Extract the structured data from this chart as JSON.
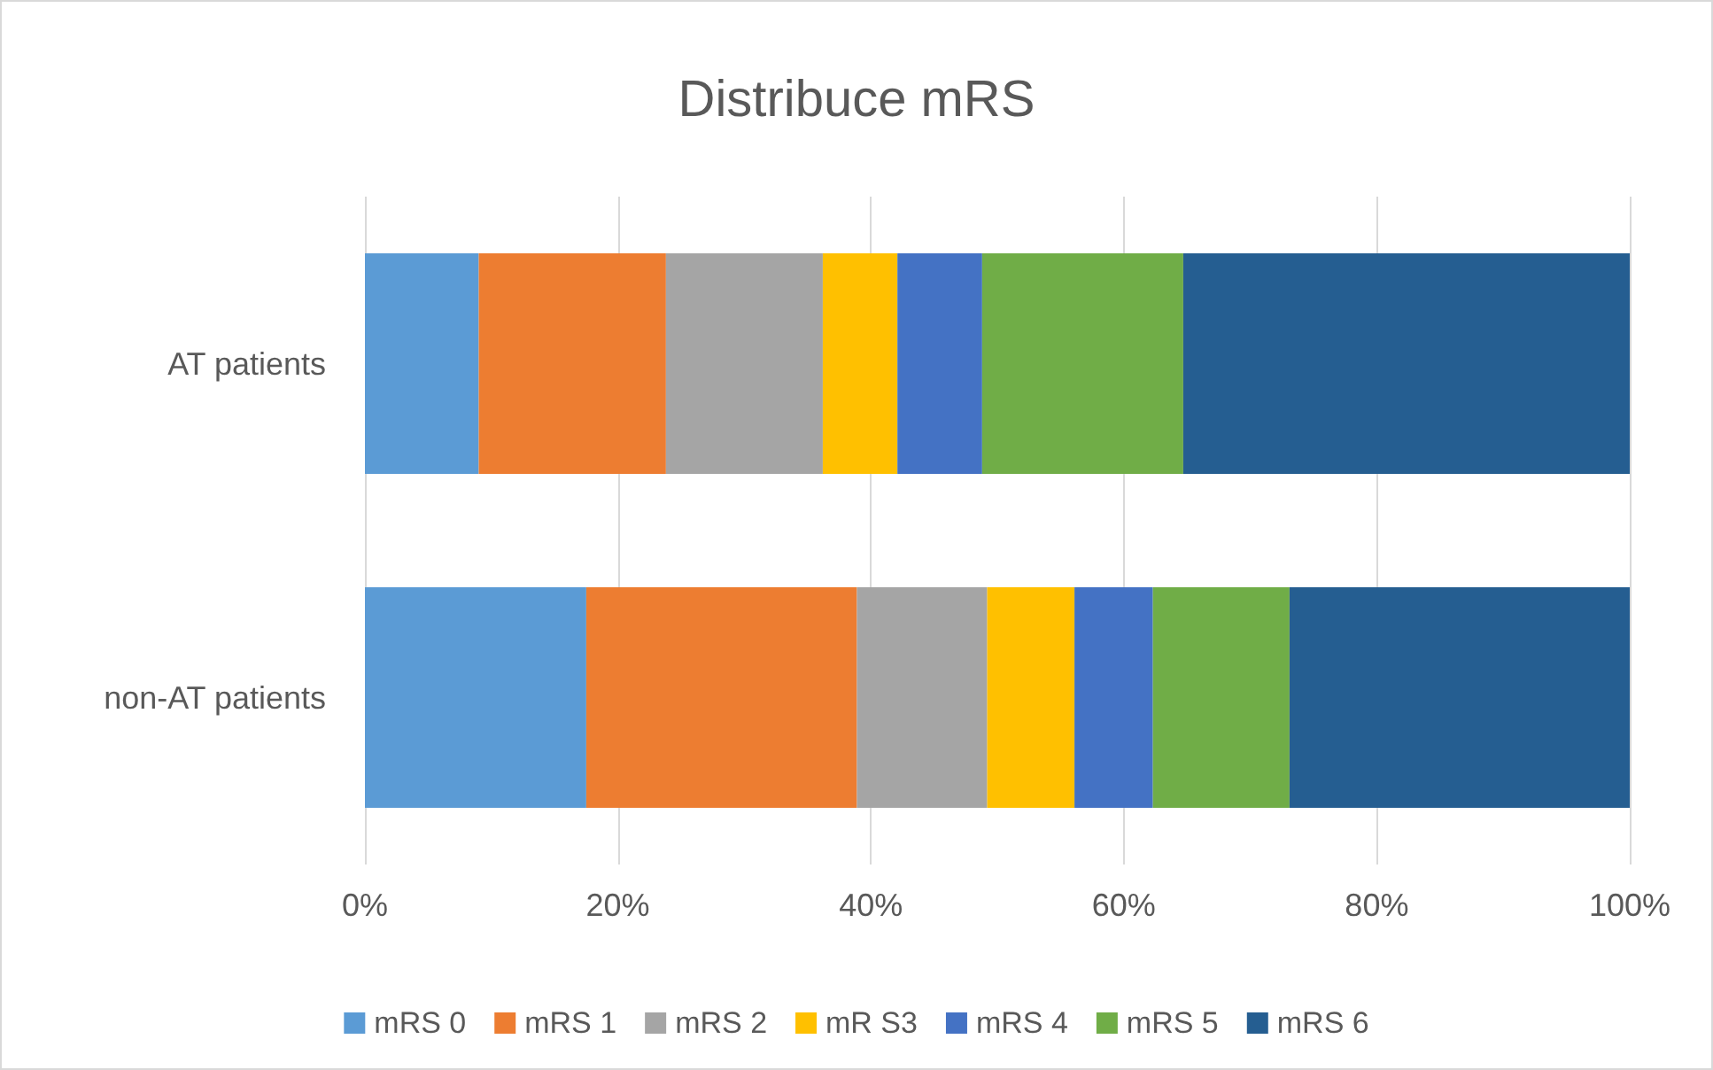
{
  "chart_data": {
    "type": "bar",
    "title": "Distribuce mRS",
    "orientation": "horizontal",
    "stacked": true,
    "categories": [
      "AT patients",
      "non-AT patients"
    ],
    "series": [
      {
        "name": "mRS 0",
        "color": "#5b9bd5",
        "values": [
          9.0,
          17.5
        ]
      },
      {
        "name": "mRS 1",
        "color": "#ed7d31",
        "values": [
          14.8,
          21.4
        ]
      },
      {
        "name": "mRS 2",
        "color": "#a5a5a5",
        "values": [
          12.4,
          10.3
        ]
      },
      {
        "name": "mR S3",
        "color": "#ffc000",
        "values": [
          5.9,
          6.9
        ]
      },
      {
        "name": "mRS 4",
        "color": "#4472c4",
        "values": [
          6.7,
          6.2
        ]
      },
      {
        "name": "mRS 5",
        "color": "#70ad47",
        "values": [
          15.9,
          10.8
        ]
      },
      {
        "name": "mRS 6",
        "color": "#255e91",
        "values": [
          35.3,
          26.9
        ]
      }
    ],
    "xlim": [
      0,
      100
    ],
    "xticks": [
      {
        "value": 0,
        "label": "0%"
      },
      {
        "value": 20,
        "label": "20%"
      },
      {
        "value": 40,
        "label": "40%"
      },
      {
        "value": 60,
        "label": "60%"
      },
      {
        "value": 80,
        "label": "80%"
      },
      {
        "value": 100,
        "label": "100%"
      }
    ],
    "grid": "x",
    "legend": "bottom"
  }
}
